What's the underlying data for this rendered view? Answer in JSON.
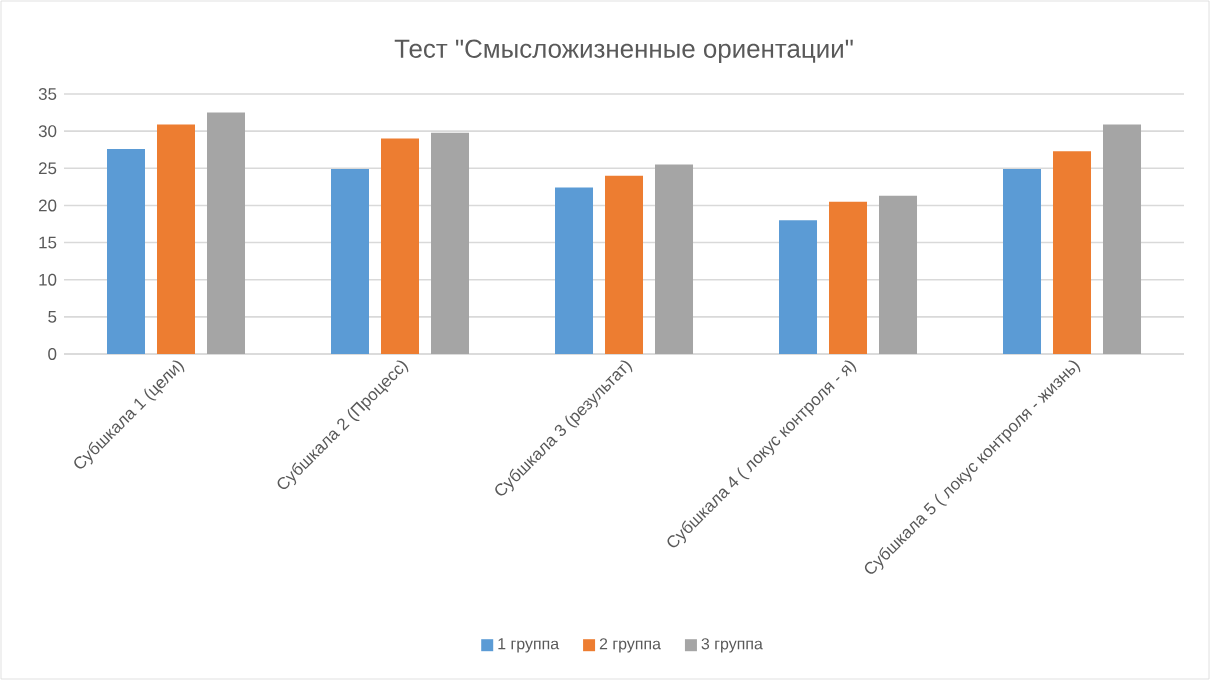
{
  "chart_data": {
    "type": "bar",
    "title": "Тест \"Смысложизненные ориентации\"",
    "categories": [
      "Субшкала 1 (цели)",
      "Субшкала 2 (Процесс)",
      "Субшкала 3 (результат)",
      "Субшкала 4 ( локус контроля - я)",
      "Субшкала 5 ( локус контроля - жизнь)"
    ],
    "series": [
      {
        "name": "1 группа",
        "color": "#5b9bd5",
        "values": [
          27.6,
          24.9,
          22.4,
          18.0,
          24.9
        ]
      },
      {
        "name": "2 группа",
        "color": "#ed7d31",
        "values": [
          30.9,
          29.0,
          24.0,
          20.5,
          27.3
        ]
      },
      {
        "name": "3 группа",
        "color": "#a5a5a5",
        "values": [
          32.5,
          29.8,
          25.5,
          21.3,
          30.9
        ]
      }
    ],
    "ylim": [
      0,
      35
    ],
    "yticks": [
      0,
      5,
      10,
      15,
      20,
      25,
      30,
      35
    ],
    "grid": "y",
    "legend": "bottom"
  }
}
